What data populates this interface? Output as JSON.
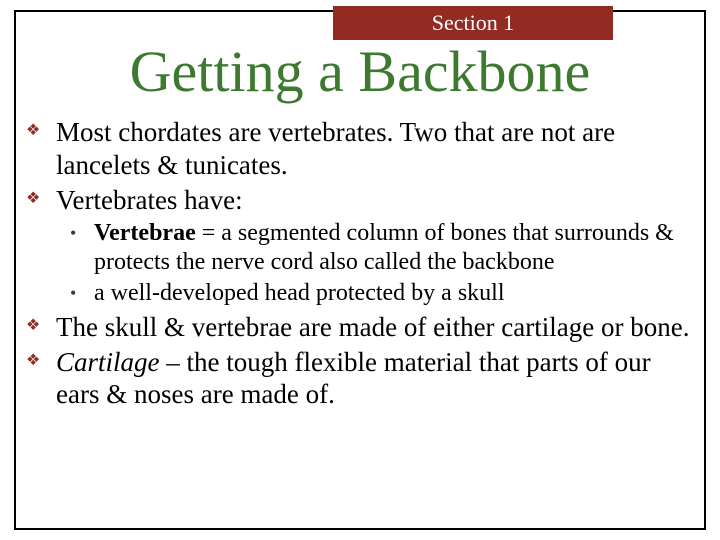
{
  "section_label": "Section 1",
  "title": "Getting a Backbone",
  "colors": {
    "accent_red": "#922b23",
    "accent_green": "#3d7a30",
    "text": "#000000",
    "background": "#ffffff",
    "border": "#000000"
  },
  "typography": {
    "title_fontsize": 58,
    "bullet_fontsize": 27,
    "sub_fontsize": 24,
    "section_fontsize": 22,
    "family": "Times New Roman"
  },
  "bullets": {
    "b1": "Most chordates are vertebrates. Two that are not are lancelets & tunicates.",
    "b2": "Vertebrates have:",
    "s1_bold": "Vertebrae",
    "s1_rest": " = a segmented column of bones that surrounds & protects the nerve cord also called the backbone",
    "s2": "a well-developed head protected by a skull",
    "b3": "The skull & vertebrae are made of either cartilage or bone.",
    "b4_italic": "Cartilage",
    "b4_rest": " – the tough flexible material that parts of our ears & noses are made of."
  }
}
